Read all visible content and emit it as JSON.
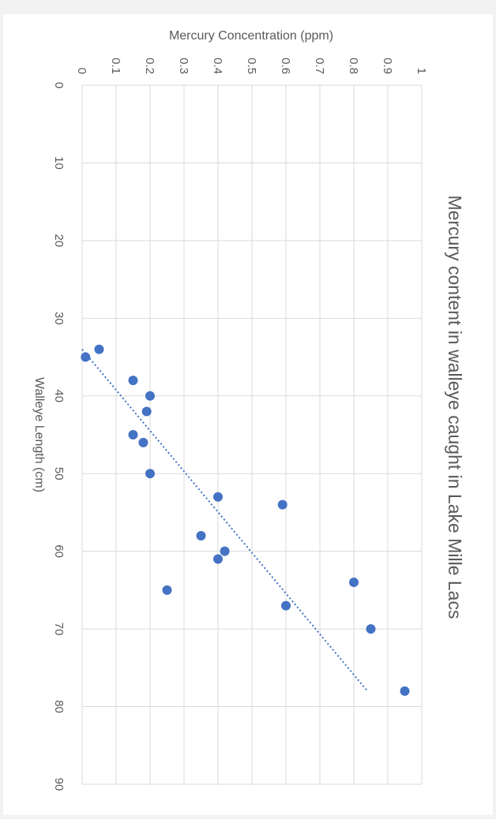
{
  "chart_data": {
    "type": "scatter",
    "title": "Mercury content in walleye caught in Lake Mille Lacs",
    "xlabel": "Walleye Length (cm)",
    "ylabel": "Mercury Concentration (ppm)",
    "xlim": [
      0,
      90
    ],
    "ylim": [
      0,
      1
    ],
    "x_ticks": [
      "0",
      "10",
      "20",
      "30",
      "40",
      "50",
      "60",
      "70",
      "80",
      "90"
    ],
    "y_ticks": [
      "0",
      "0.1",
      "0.2",
      "0.3",
      "0.4",
      "0.5",
      "0.6",
      "0.7",
      "0.8",
      "0.9",
      "1"
    ],
    "grid": true,
    "orientation": "rotated 90° clockwise",
    "points": [
      {
        "x": 34,
        "y": 0.05
      },
      {
        "x": 35,
        "y": 0.01
      },
      {
        "x": 38,
        "y": 0.15
      },
      {
        "x": 40,
        "y": 0.2
      },
      {
        "x": 42,
        "y": 0.19
      },
      {
        "x": 45,
        "y": 0.15
      },
      {
        "x": 46,
        "y": 0.18
      },
      {
        "x": 50,
        "y": 0.2
      },
      {
        "x": 53,
        "y": 0.4
      },
      {
        "x": 54,
        "y": 0.59
      },
      {
        "x": 58,
        "y": 0.35
      },
      {
        "x": 60,
        "y": 0.42
      },
      {
        "x": 61,
        "y": 0.4
      },
      {
        "x": 64,
        "y": 0.8
      },
      {
        "x": 65,
        "y": 0.25
      },
      {
        "x": 67,
        "y": 0.6
      },
      {
        "x": 70,
        "y": 0.85
      },
      {
        "x": 78,
        "y": 0.95
      }
    ],
    "trendline": {
      "style": "dotted",
      "x_start": 34,
      "y_start": 0.0,
      "x_end": 78,
      "y_end": 0.84
    },
    "color": "#4472c4"
  }
}
